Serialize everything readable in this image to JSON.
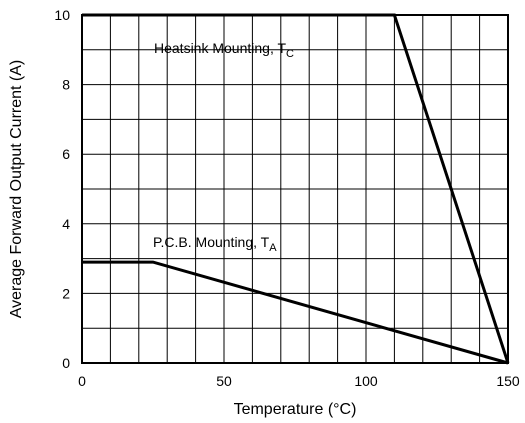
{
  "chart_data": {
    "type": "line",
    "xlabel": "Temperature (°C)",
    "ylabel": "Average Forward Output Current (A)",
    "xlim": [
      0,
      150
    ],
    "ylim": [
      0,
      10
    ],
    "x_ticks": [
      "0",
      "50",
      "100",
      "150"
    ],
    "y_ticks": [
      "0",
      "2",
      "4",
      "6",
      "8",
      "10"
    ],
    "grid": true,
    "series": [
      {
        "name": "Heatsink Mounting, T",
        "name_subscript": "C",
        "x": [
          0,
          110,
          150
        ],
        "y": [
          10,
          10,
          0
        ]
      },
      {
        "name": "P.C.B. Mounting, T",
        "name_subscript": "A",
        "x": [
          0,
          25,
          150
        ],
        "y": [
          2.9,
          2.9,
          0
        ]
      }
    ]
  }
}
